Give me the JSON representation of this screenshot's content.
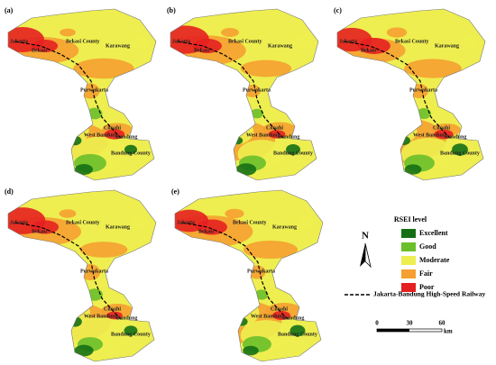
{
  "panels": [
    "(a)",
    "(b)",
    "(c)",
    "(d)",
    "(e)"
  ],
  "place_names": [
    "Jakarta",
    "Bekasi County",
    "Bekasi",
    "Karawang",
    "Purwakarta",
    "Cimahi",
    "West Bandung",
    "Bandung",
    "Bandung County"
  ],
  "legend": {
    "title": "RSEI   level",
    "items": [
      {
        "label": "Excellent",
        "color": "#157015"
      },
      {
        "label": "Good",
        "color": "#6abf2a"
      },
      {
        "label": "Moderate",
        "color": "#eeee50"
      },
      {
        "label": "Fair",
        "color": "#f5a030"
      },
      {
        "label": "Poor",
        "color": "#e52020"
      }
    ]
  },
  "railway_label": "Jakarta-Bandung High-Speed Railway",
  "north_label": "N",
  "scale_bar": {
    "ticks": [
      "0",
      "30",
      "60"
    ],
    "unit": "km"
  }
}
